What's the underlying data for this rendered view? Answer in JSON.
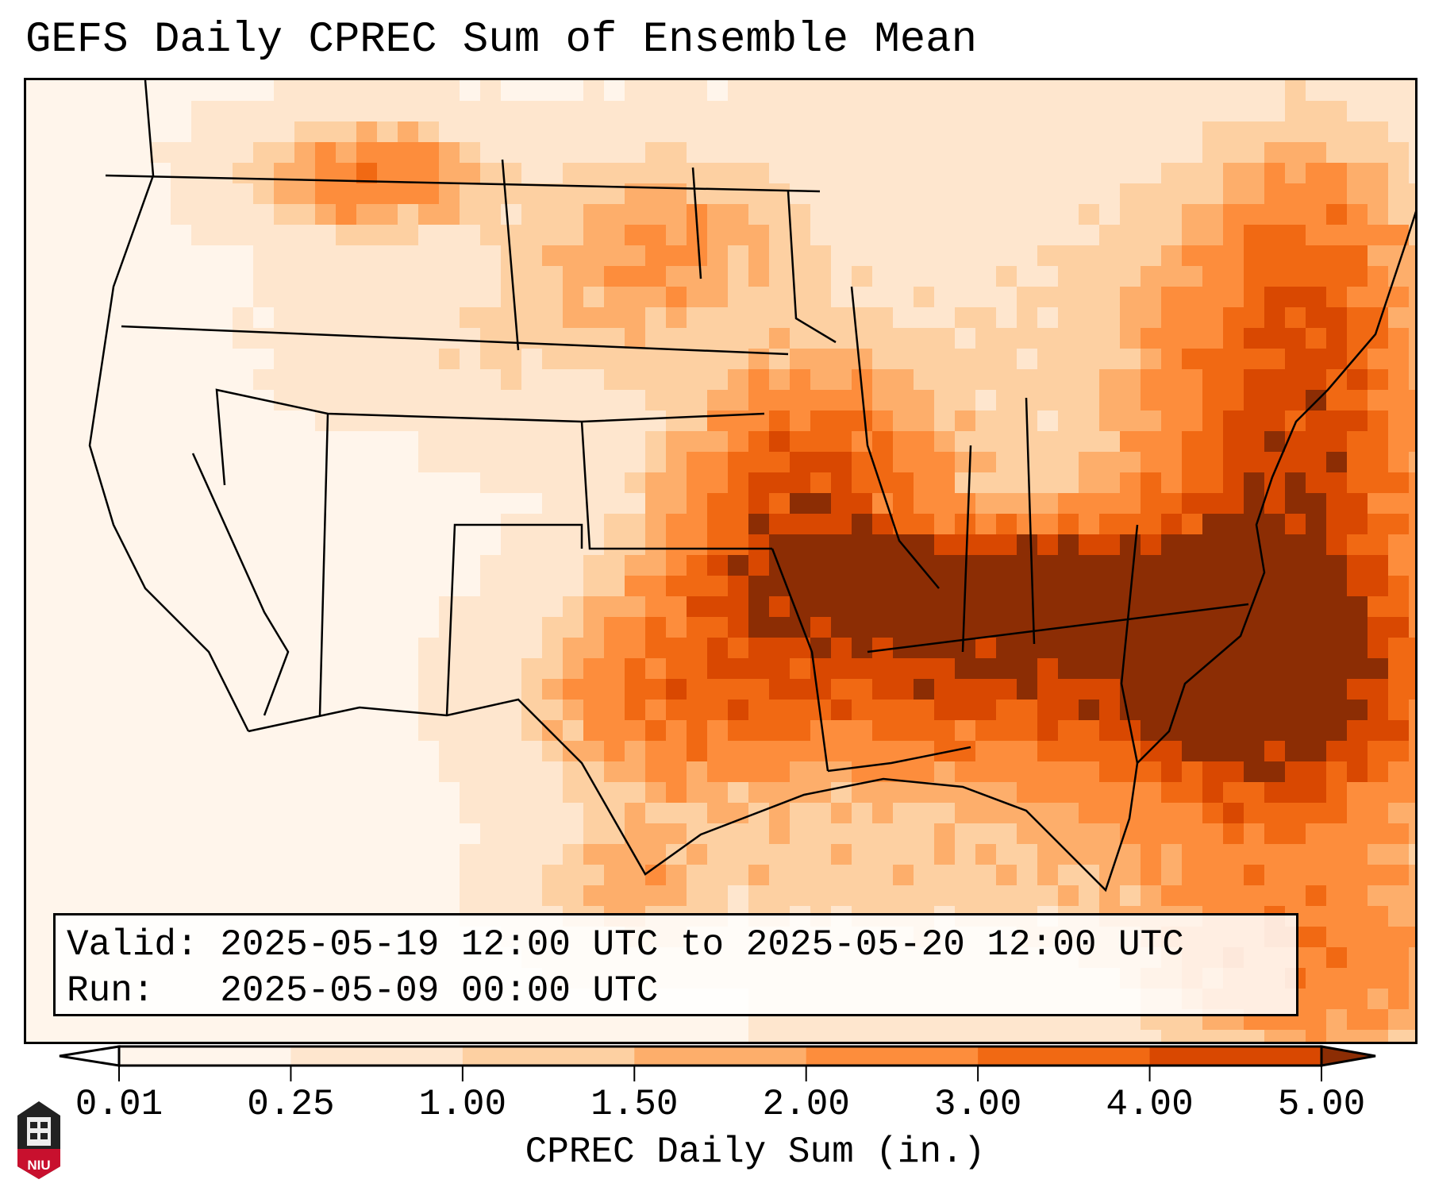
{
  "title": "GEFS Daily CPREC Sum of Ensemble Mean",
  "info": {
    "valid_label": "Valid:",
    "valid_value": "2025-05-19 12:00 UTC to 2025-05-20 12:00 UTC",
    "run_label": "Run:",
    "run_value": "2025-05-09 00:00 UTC"
  },
  "colorbar": {
    "label": "CPREC Daily Sum (in.)",
    "ticks": [
      "0.01",
      "0.25",
      "1.00",
      "1.50",
      "2.00",
      "3.00",
      "4.00",
      "5.00"
    ],
    "colors": [
      "#fff5eb",
      "#fee6ce",
      "#fdd0a2",
      "#fdae6b",
      "#fd8d3c",
      "#f16913",
      "#d94801",
      "#8c2d04"
    ],
    "extend": "both"
  },
  "logo": {
    "text": "NIU"
  }
}
